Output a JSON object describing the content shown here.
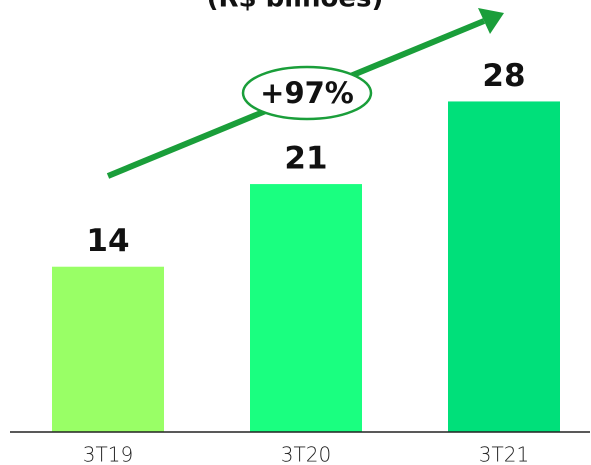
{
  "chart_data": {
    "type": "bar",
    "title": "(R$ bilhões)",
    "categories": [
      "3T19",
      "3T20",
      "3T21"
    ],
    "values": [
      14,
      21,
      28
    ],
    "colors": [
      "#99ff66",
      "#1aff80",
      "#00e07a"
    ],
    "ylim": [
      0,
      36
    ],
    "annotation": "+97%",
    "annotation_color": "#1a9e3a"
  }
}
